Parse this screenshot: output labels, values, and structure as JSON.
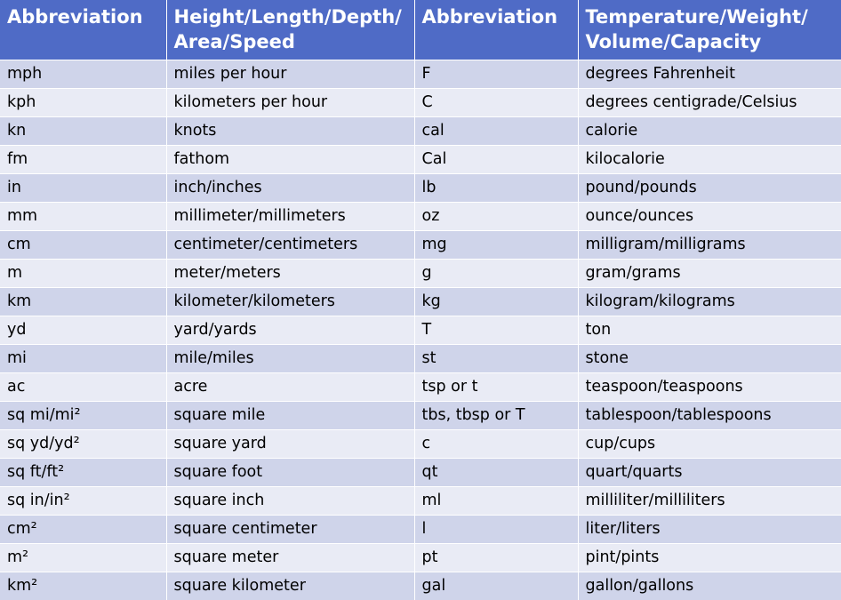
{
  "headers": {
    "col1": "Abbreviation",
    "col2_line1": "Height/Length/Depth/",
    "col2_line2": "Area/Speed",
    "col3": "Abbreviation",
    "col4_line1": "Temperature/Weight/",
    "col4_line2": "Volume/Capacity"
  },
  "rows": [
    {
      "a1": "mph",
      "d1": "miles per hour",
      "a2": "F",
      "d2": "degrees Fahrenheit"
    },
    {
      "a1": "kph",
      "d1": "kilometers per hour",
      "a2": "C",
      "d2": "degrees centigrade/Celsius"
    },
    {
      "a1": "kn",
      "d1": "knots",
      "a2": "cal",
      "d2": "calorie"
    },
    {
      "a1": "fm",
      "d1": "fathom",
      "a2": "Cal",
      "d2": "kilocalorie"
    },
    {
      "a1": "in",
      "d1": "inch/inches",
      "a2": "lb",
      "d2": "pound/pounds"
    },
    {
      "a1": "mm",
      "d1": "millimeter/millimeters",
      "a2": "oz",
      "d2": "ounce/ounces"
    },
    {
      "a1": "cm",
      "d1": "centimeter/centimeters",
      "a2": "mg",
      "d2": "milligram/milligrams"
    },
    {
      "a1": "m",
      "d1": "meter/meters",
      "a2": "g",
      "d2": "gram/grams"
    },
    {
      "a1": "km",
      "d1": "kilometer/kilometers",
      "a2": "kg",
      "d2": "kilogram/kilograms"
    },
    {
      "a1": "yd",
      "d1": "yard/yards",
      "a2": "T",
      "d2": "ton"
    },
    {
      "a1": "mi",
      "d1": "mile/miles",
      "a2": "st",
      "d2": "stone"
    },
    {
      "a1": "ac",
      "d1": "acre",
      "a2": "tsp or t",
      "d2": "teaspoon/teaspoons"
    },
    {
      "a1": "sq mi/mi²",
      "d1": "square mile",
      "a2": "tbs, tbsp or T",
      "d2": "tablespoon/tablespoons"
    },
    {
      "a1": "sq yd/yd²",
      "d1": "square yard",
      "a2": "c",
      "d2": "cup/cups"
    },
    {
      "a1": "sq ft/ft²",
      "d1": "square foot",
      "a2": "qt",
      "d2": "quart/quarts"
    },
    {
      "a1": "sq in/in²",
      "d1": "square inch",
      "a2": "ml",
      "d2": "milliliter/milliliters"
    },
    {
      "a1": "cm²",
      "d1": "square centimeter",
      "a2": "l",
      "d2": "liter/liters"
    },
    {
      "a1": "m²",
      "d1": "square meter",
      "a2": "pt",
      "d2": "pint/pints"
    },
    {
      "a1": "km²",
      "d1": "square kilometer",
      "a2": "gal",
      "d2": "gallon/gallons"
    }
  ],
  "colors": {
    "header_bg": "#4f6bc6",
    "row_dark": "#cfd4ea",
    "row_light": "#e9ebf5"
  }
}
